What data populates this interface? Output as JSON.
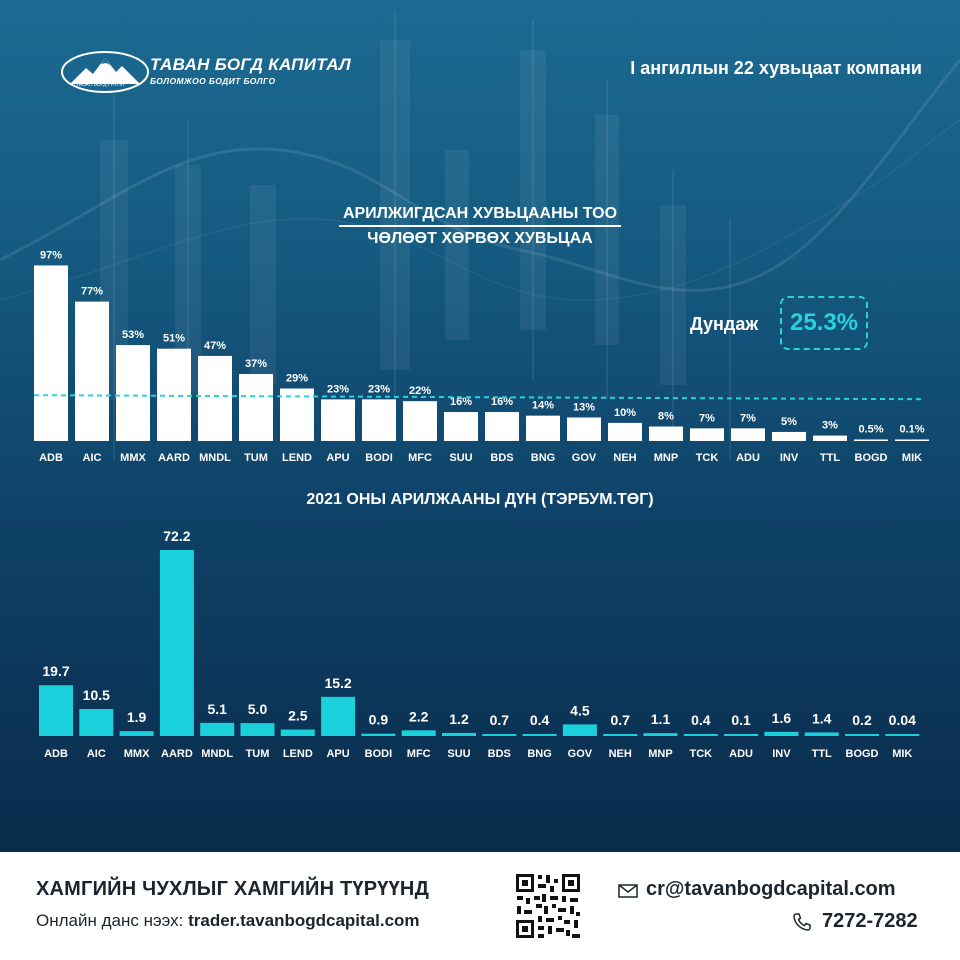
{
  "brand": {
    "name": "ТАВАН БОГД КАПИТАЛ",
    "tagline": "БОЛОМЖОО БОДИТ БОЛГО",
    "tagline_small": "ТАВАН БОГД ГРУПП"
  },
  "header": {
    "subtitle": "I ангиллын 22 хувьцаат компани"
  },
  "colors": {
    "bar_white": "#ffffff",
    "bar_cyan": "#1ad0da",
    "accent": "#29d3dc",
    "avg_line": "#29d3dc"
  },
  "average": {
    "label": "Дундаж",
    "value": "25.3%"
  },
  "chart_data": [
    {
      "type": "bar",
      "title": "АРИЛЖИГДСАН ХУВЬЦААНЫ ТОО",
      "subtitle": "ЧӨЛӨӨТ ХӨРВӨХ ХУВЬЦАА",
      "categories": [
        "ADB",
        "AIC",
        "MMX",
        "AARD",
        "MNDL",
        "TUM",
        "LEND",
        "APU",
        "BODI",
        "MFC",
        "SUU",
        "BDS",
        "BNG",
        "GOV",
        "NEH",
        "MNP",
        "TCK",
        "ADU",
        "INV",
        "TTL",
        "BOGD",
        "MIK"
      ],
      "values": [
        97,
        77,
        53,
        51,
        47,
        37,
        29,
        23,
        23,
        22,
        16,
        16,
        14,
        13,
        10,
        8,
        7,
        7,
        5,
        3,
        0.5,
        0.1
      ],
      "value_labels": [
        "97%",
        "77%",
        "53%",
        "51%",
        "47%",
        "37%",
        "29%",
        "23%",
        "23%",
        "22%",
        "16%",
        "16%",
        "14%",
        "13%",
        "10%",
        "8%",
        "7%",
        "7%",
        "5%",
        "3%",
        "0.5%",
        "0.1%"
      ],
      "average_line": 25.3,
      "ylim": [
        0,
        100
      ]
    },
    {
      "type": "bar",
      "title": "2021 ОНЫ АРИЛЖААНЫ ДҮН (ТЭРБУМ.ТӨГ)",
      "categories": [
        "ADB",
        "AIC",
        "MMX",
        "AARD",
        "MNDL",
        "TUM",
        "LEND",
        "APU",
        "BODI",
        "MFC",
        "SUU",
        "BDS",
        "BNG",
        "GOV",
        "NEH",
        "MNP",
        "TCK",
        "ADU",
        "INV",
        "TTL",
        "BOGD",
        "MIK"
      ],
      "values": [
        19.7,
        10.5,
        1.9,
        72.2,
        5.1,
        5.0,
        2.5,
        15.2,
        0.9,
        2.2,
        1.2,
        0.7,
        0.4,
        4.5,
        0.7,
        1.1,
        0.4,
        0.1,
        1.6,
        1.4,
        0.2,
        0.04
      ],
      "value_labels": [
        "19.7",
        "10.5",
        "1.9",
        "72.2",
        "5.1",
        "5.0",
        "2.5",
        "15.2",
        "0.9",
        "2.2",
        "1.2",
        "0.7",
        "0.4",
        "4.5",
        "0.7",
        "1.1",
        "0.4",
        "0.1",
        "1.6",
        "1.4",
        "0.2",
        "0.04"
      ],
      "ylim": [
        0,
        75
      ]
    }
  ],
  "footer": {
    "slogan": "ХАМГИЙН ЧУХЛЫГ ХАМГИЙН ТҮРҮҮНД",
    "online_label": "Онлайн данс нээх:",
    "online_url": "trader.tavanbogdcapital.com",
    "email": "cr@tavanbogdcapital.com",
    "phone": "7272-7282"
  }
}
